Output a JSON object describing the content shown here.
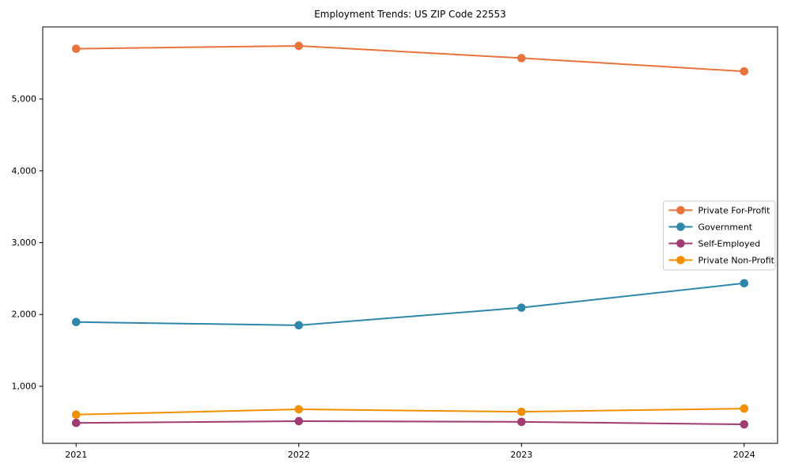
{
  "chart_data": {
    "type": "line",
    "title": "Employment Trends: US ZIP Code 22553",
    "categories": [
      "2021",
      "2022",
      "2023",
      "2024"
    ],
    "series": [
      {
        "name": "Private For-Profit",
        "color": "#e8743b",
        "values": [
          5700,
          5740,
          5570,
          5385
        ]
      },
      {
        "name": "Government",
        "color": "#2e86ab",
        "values": [
          1895,
          1850,
          2095,
          2435
        ]
      },
      {
        "name": "Self-Employed",
        "color": "#a23b72",
        "values": [
          490,
          515,
          505,
          470
        ]
      },
      {
        "name": "Private Non-Profit",
        "color": "#f18f01",
        "values": [
          605,
          680,
          645,
          690
        ]
      }
    ],
    "xlabel": "",
    "ylabel": "",
    "ylim": [
      206,
      6004
    ],
    "xlim": [
      -0.15,
      3.15
    ],
    "yticks": [
      1000,
      2000,
      3000,
      4000,
      5000
    ],
    "ytick_labels": [
      "1,000",
      "2,000",
      "3,000",
      "4,000",
      "5,000"
    ],
    "grid": false,
    "legend_position": "center right",
    "axis_color": "#000000",
    "legend_border_color": "#cccccc",
    "background_color": "#ffffff"
  }
}
